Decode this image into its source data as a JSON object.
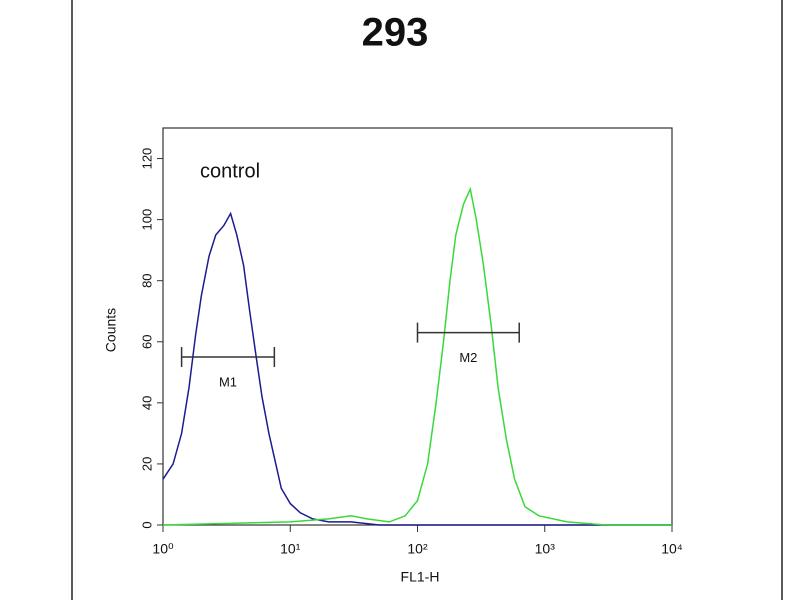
{
  "chart_data": {
    "type": "line",
    "title": "293",
    "xlabel": "FL1-H",
    "ylabel": "Counts",
    "annotation": "control",
    "xscale": "log",
    "xlim": [
      1,
      10000
    ],
    "xticks": [
      {
        "value": 1,
        "label": "10⁰"
      },
      {
        "value": 10,
        "label": "10¹"
      },
      {
        "value": 100,
        "label": "10²"
      },
      {
        "value": 1000,
        "label": "10³"
      },
      {
        "value": 10000,
        "label": "10⁴"
      }
    ],
    "ylim": [
      0,
      130
    ],
    "yticks": [
      0,
      20,
      40,
      60,
      80,
      100,
      120
    ],
    "series": [
      {
        "name": "control",
        "color": "#1c1c8e",
        "x": [
          1.0,
          1.2,
          1.4,
          1.6,
          1.8,
          2.0,
          2.3,
          2.6,
          3.0,
          3.4,
          3.8,
          4.3,
          4.8,
          5.4,
          6.0,
          6.8,
          7.5,
          8.5,
          10,
          12,
          15,
          20,
          30,
          50,
          100,
          1000,
          10000
        ],
        "values": [
          15,
          20,
          30,
          45,
          62,
          75,
          88,
          95,
          98,
          102,
          95,
          85,
          70,
          55,
          42,
          30,
          22,
          12,
          7,
          4,
          2,
          1,
          1,
          0,
          0,
          0,
          0
        ]
      },
      {
        "name": "293",
        "color": "#3ad83a",
        "x": [
          1,
          10,
          20,
          30,
          40,
          60,
          80,
          100,
          120,
          140,
          160,
          180,
          200,
          230,
          260,
          290,
          330,
          380,
          430,
          500,
          580,
          700,
          900,
          1500,
          3000,
          10000
        ],
        "values": [
          0,
          1,
          2,
          3,
          2,
          1,
          3,
          8,
          20,
          40,
          60,
          80,
          95,
          105,
          110,
          100,
          85,
          65,
          45,
          28,
          15,
          6,
          3,
          1,
          0,
          0
        ]
      }
    ],
    "markers": [
      {
        "label": "M1",
        "x": [
          1.4,
          7.5
        ],
        "y": 55
      },
      {
        "label": "M2",
        "x": [
          100,
          630
        ],
        "y": 63
      }
    ]
  }
}
